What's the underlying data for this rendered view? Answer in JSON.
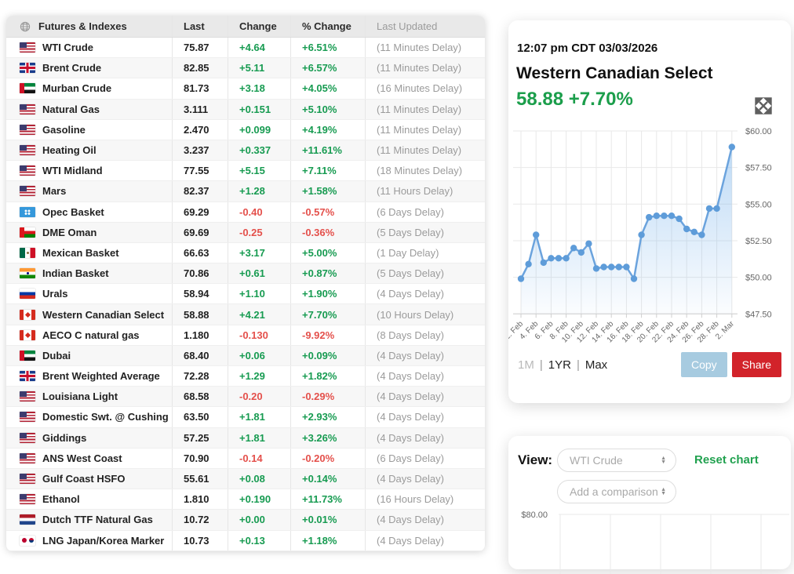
{
  "colors": {
    "positive": "#179b51",
    "negative": "#e4504b",
    "price_green": "#1b9e4b",
    "link_green": "#21a14f",
    "share_red": "#d2232a",
    "copy_blue": "#a7cbe0",
    "chart_line": "#6ba3dd",
    "chart_marker": "#5e9cd9"
  },
  "icons": {
    "table_header": "globe-icon",
    "quote_card": "expand-arrows-icon",
    "selects": "up-down-stepper-icon"
  },
  "table": {
    "headers": {
      "name": "Futures & Indexes",
      "last": "Last",
      "change": "Change",
      "pct_change": "% Change",
      "updated": "Last Updated"
    },
    "rows": [
      {
        "flag": "us",
        "name": "WTI Crude",
        "last": "75.87",
        "change": "+4.64",
        "pct": "+6.51%",
        "updated": "(11 Minutes Delay)",
        "dir": "up"
      },
      {
        "flag": "uk",
        "name": "Brent Crude",
        "last": "82.85",
        "change": "+5.11",
        "pct": "+6.57%",
        "updated": "(11 Minutes Delay)",
        "dir": "up"
      },
      {
        "flag": "ae",
        "name": "Murban Crude",
        "last": "81.73",
        "change": "+3.18",
        "pct": "+4.05%",
        "updated": "(16 Minutes Delay)",
        "dir": "up"
      },
      {
        "flag": "us",
        "name": "Natural Gas",
        "last": "3.111",
        "change": "+0.151",
        "pct": "+5.10%",
        "updated": "(11 Minutes Delay)",
        "dir": "up"
      },
      {
        "flag": "us",
        "name": "Gasoline",
        "last": "2.470",
        "change": "+0.099",
        "pct": "+4.19%",
        "updated": "(11 Minutes Delay)",
        "dir": "up"
      },
      {
        "flag": "us",
        "name": "Heating Oil",
        "last": "3.237",
        "change": "+0.337",
        "pct": "+11.61%",
        "updated": "(11 Minutes Delay)",
        "dir": "up"
      },
      {
        "flag": "us",
        "name": "WTI Midland",
        "last": "77.55",
        "change": "+5.15",
        "pct": "+7.11%",
        "updated": "(18 Minutes Delay)",
        "dir": "up"
      },
      {
        "flag": "us",
        "name": "Mars",
        "last": "82.37",
        "change": "+1.28",
        "pct": "+1.58%",
        "updated": "(11 Hours Delay)",
        "dir": "up"
      },
      {
        "flag": "opec",
        "name": "Opec Basket",
        "last": "69.29",
        "change": "-0.40",
        "pct": "-0.57%",
        "updated": "(6 Days Delay)",
        "dir": "down"
      },
      {
        "flag": "om",
        "name": "DME Oman",
        "last": "69.69",
        "change": "-0.25",
        "pct": "-0.36%",
        "updated": "(5 Days Delay)",
        "dir": "down"
      },
      {
        "flag": "mx",
        "name": "Mexican Basket",
        "last": "66.63",
        "change": "+3.17",
        "pct": "+5.00%",
        "updated": "(1 Day Delay)",
        "dir": "up"
      },
      {
        "flag": "in",
        "name": "Indian Basket",
        "last": "70.86",
        "change": "+0.61",
        "pct": "+0.87%",
        "updated": "(5 Days Delay)",
        "dir": "up"
      },
      {
        "flag": "ru",
        "name": "Urals",
        "last": "58.94",
        "change": "+1.10",
        "pct": "+1.90%",
        "updated": "(4 Days Delay)",
        "dir": "up"
      },
      {
        "flag": "ca",
        "name": "Western Canadian Select",
        "last": "58.88",
        "change": "+4.21",
        "pct": "+7.70%",
        "updated": "(10 Hours Delay)",
        "dir": "up"
      },
      {
        "flag": "ca",
        "name": "AECO C natural gas",
        "last": "1.180",
        "change": "-0.130",
        "pct": "-9.92%",
        "updated": "(8 Days Delay)",
        "dir": "down"
      },
      {
        "flag": "ae",
        "name": "Dubai",
        "last": "68.40",
        "change": "+0.06",
        "pct": "+0.09%",
        "updated": "(4 Days Delay)",
        "dir": "up"
      },
      {
        "flag": "uk",
        "name": "Brent Weighted Average",
        "last": "72.28",
        "change": "+1.29",
        "pct": "+1.82%",
        "updated": "(4 Days Delay)",
        "dir": "up"
      },
      {
        "flag": "us",
        "name": "Louisiana Light",
        "last": "68.58",
        "change": "-0.20",
        "pct": "-0.29%",
        "updated": "(4 Days Delay)",
        "dir": "down"
      },
      {
        "flag": "us",
        "name": "Domestic Swt. @ Cushing",
        "last": "63.50",
        "change": "+1.81",
        "pct": "+2.93%",
        "updated": "(4 Days Delay)",
        "dir": "up"
      },
      {
        "flag": "us",
        "name": "Giddings",
        "last": "57.25",
        "change": "+1.81",
        "pct": "+3.26%",
        "updated": "(4 Days Delay)",
        "dir": "up"
      },
      {
        "flag": "us",
        "name": "ANS West Coast",
        "last": "70.90",
        "change": "-0.14",
        "pct": "-0.20%",
        "updated": "(6 Days Delay)",
        "dir": "down"
      },
      {
        "flag": "us",
        "name": "Gulf Coast HSFO",
        "last": "55.61",
        "change": "+0.08",
        "pct": "+0.14%",
        "updated": "(4 Days Delay)",
        "dir": "up"
      },
      {
        "flag": "us",
        "name": "Ethanol",
        "last": "1.810",
        "change": "+0.190",
        "pct": "+11.73%",
        "updated": "(16 Hours Delay)",
        "dir": "up"
      },
      {
        "flag": "nl",
        "name": "Dutch TTF Natural Gas",
        "last": "10.72",
        "change": "+0.00",
        "pct": "+0.01%",
        "updated": "(4 Days Delay)",
        "dir": "up"
      },
      {
        "flag": "jpkr",
        "name": "LNG Japan/Korea Marker",
        "last": "10.73",
        "change": "+0.13",
        "pct": "+1.18%",
        "updated": "(4 Days Delay)",
        "dir": "up"
      }
    ]
  },
  "quote_card": {
    "timestamp": "12:07 pm CDT 03/03/2026",
    "title": "Western Canadian Select",
    "price": "58.88",
    "pct": "+7.70%",
    "range_options": [
      "1M",
      "1YR",
      "Max"
    ],
    "active_range": "1M",
    "copy_label": "Copy",
    "share_label": "Share"
  },
  "compare_card": {
    "view_label": "View:",
    "view_select_value": "WTI Crude",
    "reset_label": "Reset chart",
    "comparison_select_placeholder": "Add a comparison",
    "mini_axis_label": "$80.00"
  },
  "chart_data": [
    {
      "type": "area",
      "title": "Western Canadian Select — 1M",
      "x": [
        "2. Feb",
        "3. Feb",
        "4. Feb",
        "5. Feb",
        "6. Feb",
        "7. Feb",
        "8. Feb",
        "9. Feb",
        "10. Feb",
        "11. Feb",
        "12. Feb",
        "13. Feb",
        "14. Feb",
        "15. Feb",
        "16. Feb",
        "17. Feb",
        "18. Feb",
        "19. Feb",
        "20. Feb",
        "21. Feb",
        "22. Feb",
        "23. Feb",
        "24. Feb",
        "25. Feb",
        "26. Feb",
        "27. Feb",
        "28. Feb",
        "2. Mar"
      ],
      "x_day_offsets": [
        0,
        1,
        2,
        3,
        4,
        5,
        6,
        7,
        8,
        9,
        10,
        11,
        12,
        13,
        14,
        15,
        16,
        17,
        18,
        19,
        20,
        21,
        22,
        23,
        24,
        25,
        26,
        28
      ],
      "values": [
        49.9,
        50.9,
        52.9,
        51.0,
        51.3,
        51.3,
        51.3,
        52.0,
        51.7,
        52.3,
        50.6,
        50.7,
        50.7,
        50.7,
        50.7,
        49.9,
        52.9,
        54.1,
        54.2,
        54.2,
        54.2,
        54.0,
        53.3,
        53.1,
        52.9,
        54.7,
        54.7,
        58.9
      ],
      "x_tick_labels": [
        "2. Feb",
        "4. Feb",
        "6. Feb",
        "8. Feb",
        "10. Feb",
        "12. Feb",
        "14. Feb",
        "16. Feb",
        "18. Feb",
        "20. Feb",
        "22. Feb",
        "24. Feb",
        "26. Feb",
        "28. Feb",
        "2. Mar"
      ],
      "x_tick_day_offsets": [
        0,
        2,
        4,
        6,
        8,
        10,
        12,
        14,
        16,
        18,
        20,
        22,
        24,
        26,
        28
      ],
      "y_tick_values": [
        47.5,
        50,
        52.5,
        55,
        57.5,
        60
      ],
      "y_tick_labels": [
        "$47.50",
        "$50.00",
        "$52.50",
        "$55.00",
        "$57.50",
        "$60.00"
      ],
      "ylim": [
        47.5,
        60
      ],
      "grid": true,
      "legend": false,
      "y_axis_position": "right"
    },
    {
      "type": "line",
      "title": "Comparison chart (top edge visible only)",
      "y_tick_labels": [
        "$80.00"
      ],
      "y_tick_values": [
        80
      ],
      "x": [],
      "values": [],
      "grid": true,
      "legend": false,
      "y_axis_position": "left"
    }
  ]
}
